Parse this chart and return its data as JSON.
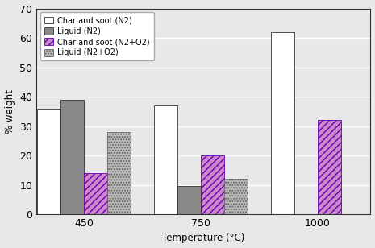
{
  "temperatures": [
    "450",
    "750",
    "1000"
  ],
  "series": [
    {
      "label": "Char and soot (N2)",
      "values": [
        36,
        37,
        62
      ],
      "facecolor": "white",
      "edgecolor": "#333333",
      "hatch": ""
    },
    {
      "label": "Liquid (N2)",
      "values": [
        39,
        9.5,
        0
      ],
      "facecolor": "#888888",
      "edgecolor": "#333333",
      "hatch": ""
    },
    {
      "label": "Char and soot (N2+O2)",
      "values": [
        14,
        20,
        32
      ],
      "facecolor": "#cc88cc",
      "edgecolor": "#6600aa",
      "hatch": "////"
    },
    {
      "label": "Liquid (N2+O2)",
      "values": [
        28,
        12,
        0
      ],
      "facecolor": "#bbbbbb",
      "edgecolor": "#666666",
      "hatch": "....."
    }
  ],
  "ylabel": "% weight",
  "xlabel": "Temperature (°C)",
  "ylim": [
    0,
    70
  ],
  "yticks": [
    0,
    10,
    20,
    30,
    40,
    50,
    60,
    70
  ],
  "bar_width": 0.22,
  "group_positions": [
    0.4,
    1.5,
    2.6
  ],
  "legend_loc": "upper left",
  "legend_fontsize": 7,
  "axis_fontsize": 8.5,
  "tick_fontsize": 9
}
